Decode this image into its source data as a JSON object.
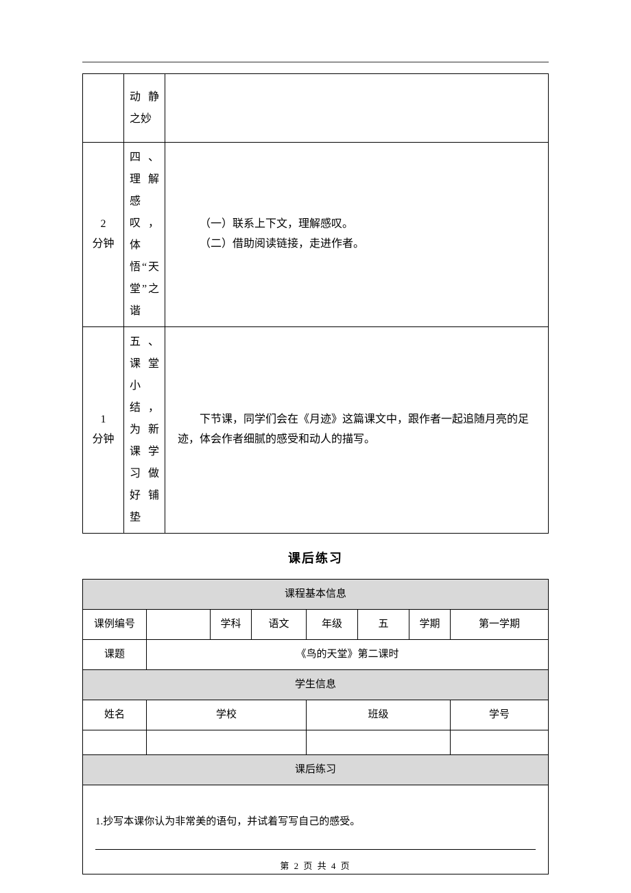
{
  "table1": {
    "row1": {
      "time": "",
      "title": "动静之妙",
      "content": ""
    },
    "row2": {
      "time": "2\n分钟",
      "title": "四、理解感叹，体悟“天堂”之谐",
      "content1": "（一）联系上下文，理解感叹。",
      "content2": "（二）借助阅读链接，走进作者。"
    },
    "row3": {
      "time": "1\n分钟",
      "title": "五、课堂小结，为新课学习做好铺垫",
      "content": "下节课，同学们会在《月迹》这篇课文中，跟作者一起追随月亮的足迹，体会作者细腻的感受和动人的描写。"
    }
  },
  "section_title": "课后练习",
  "table2": {
    "header_basic": "课程基本信息",
    "labels": {
      "course_id": "课例编号",
      "subject": "学科",
      "subject_value": "语文",
      "grade": "年级",
      "grade_value": "五",
      "semester": "学期",
      "semester_value": "第一学期",
      "topic": "课题",
      "topic_value": "《鸟的天堂》第二课时",
      "student_info": "学生信息",
      "name": "姓名",
      "school": "学校",
      "class": "班级",
      "student_id": "学号",
      "exercise": "课后练习"
    },
    "exercise_item": "1.抄写本课你认为非常美的语句，并试着写写自己的感受。"
  },
  "footer": {
    "page_label": "第 2 页 共 4 页"
  },
  "colors": {
    "header_bg": "#d9d9d9",
    "border": "#000000",
    "text": "#000000",
    "bg": "#ffffff"
  }
}
